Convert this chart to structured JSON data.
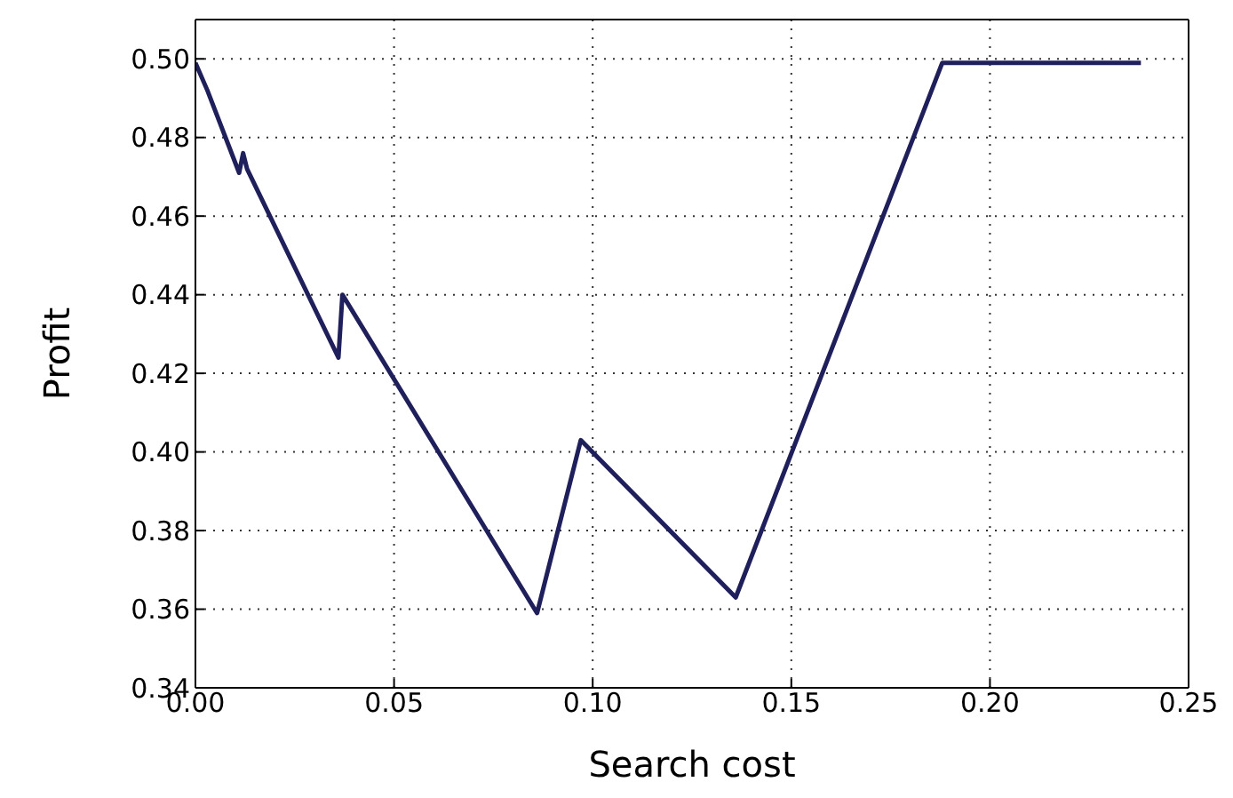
{
  "chart_data": {
    "type": "line",
    "xlabel": "Search cost",
    "ylabel": "Profit",
    "x": [
      0,
      0.003,
      0.011,
      0.012,
      0.013,
      0.036,
      0.037,
      0.086,
      0.097,
      0.136,
      0.188,
      0.238
    ],
    "series": [
      {
        "color": "#1f1f5c",
        "values": [
          0.499,
          0.492,
          0.471,
          0.476,
          0.472,
          0.424,
          0.44,
          0.359,
          0.403,
          0.363,
          0.499,
          0.499
        ]
      }
    ],
    "xlim": [
      0,
      0.25
    ],
    "xticks": [
      {
        "value": 0,
        "label": "0.00"
      },
      {
        "value": 0.05,
        "label": "0.05"
      },
      {
        "value": 0.1,
        "label": "0.10"
      },
      {
        "value": 0.15,
        "label": "0.15"
      },
      {
        "value": 0.2,
        "label": "0.20"
      },
      {
        "value": 0.25,
        "label": "0.25"
      }
    ],
    "ylim": [
      0.34,
      0.51
    ],
    "yticks": [
      0.34,
      0.36,
      0.38,
      {
        "value": 0.4,
        "label": "0.40"
      },
      0.42,
      0.44,
      0.46,
      0.48,
      {
        "value": 0.5,
        "label": "0.50"
      }
    ],
    "grid": true,
    "marker": "none",
    "line_style": "solid"
  }
}
